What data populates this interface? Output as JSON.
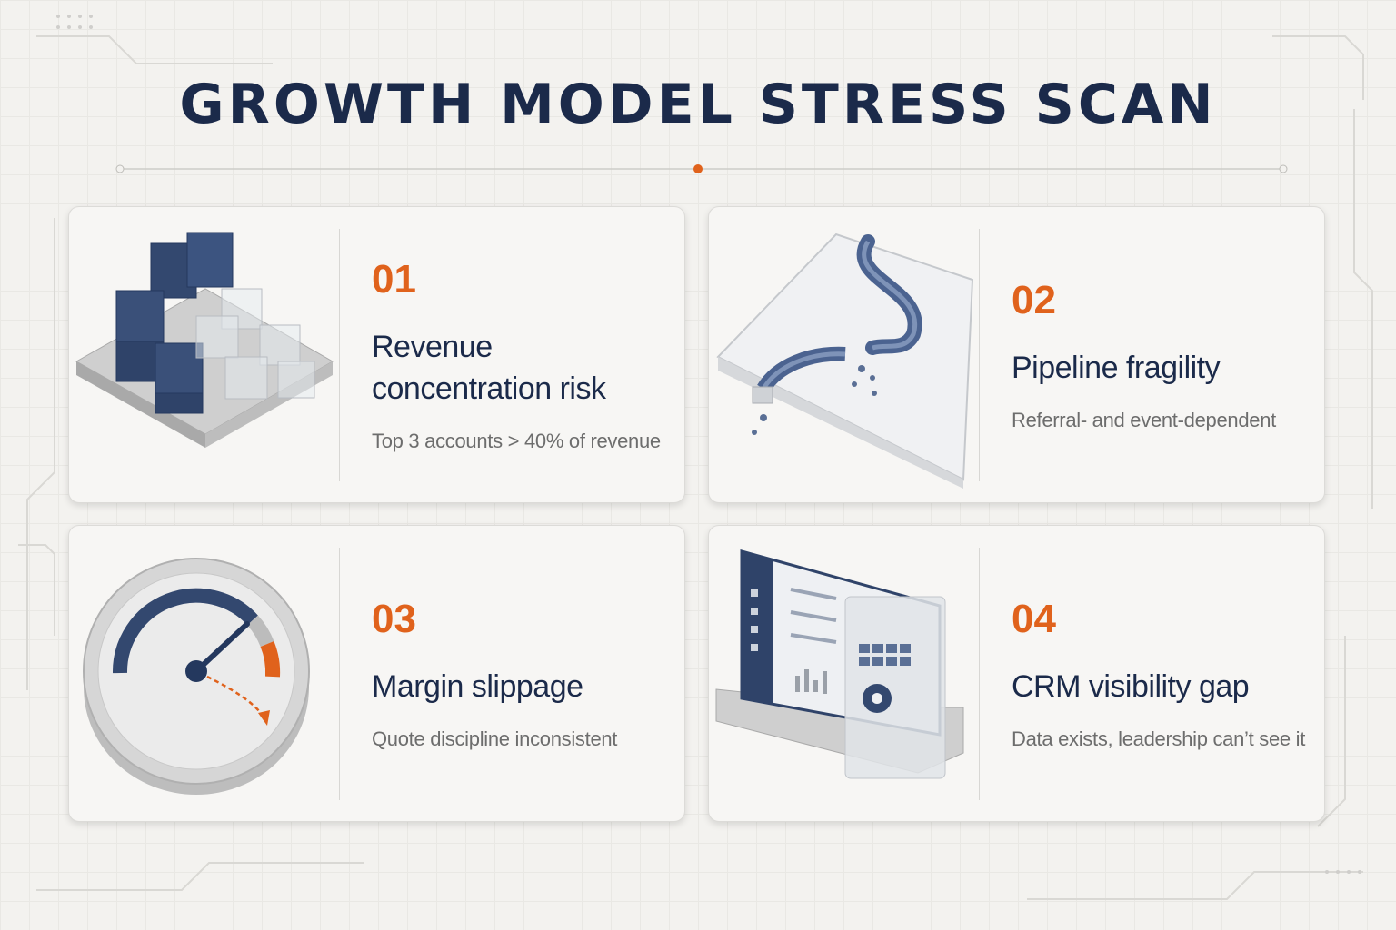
{
  "header": {
    "title": "GROWTH MODEL STRESS SCAN"
  },
  "cards": [
    {
      "number": "01",
      "title": "Revenue concentration risk",
      "description": "Top 3 accounts > 40% of revenue"
    },
    {
      "number": "02",
      "title": "Pipeline fragility",
      "description": "Referral- and event-dependent"
    },
    {
      "number": "03",
      "title": "Margin slippage",
      "description": "Quote discipline inconsistent"
    },
    {
      "number": "04",
      "title": "CRM visibility gap",
      "description": "Data exists, leadership can’t see it"
    }
  ]
}
